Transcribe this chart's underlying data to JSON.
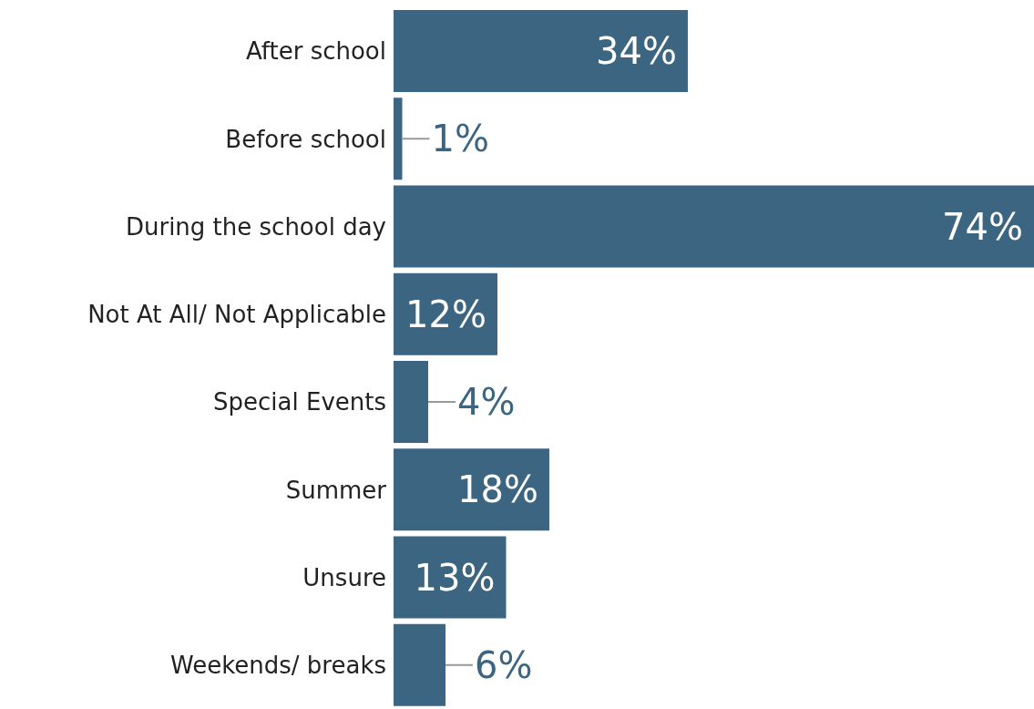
{
  "chart_data": {
    "type": "bar",
    "orientation": "horizontal",
    "categories": [
      "After school",
      "Before school",
      "During the school day",
      "Not At All/ Not Applicable",
      "Special Events",
      "Summer",
      "Unsure",
      "Weekends/ breaks"
    ],
    "values": [
      34,
      1,
      74,
      12,
      4,
      18,
      13,
      6
    ],
    "value_labels": [
      "34%",
      "1%",
      "74%",
      "12%",
      "4%",
      "18%",
      "13%",
      "6%"
    ],
    "color": "#3b6580",
    "grid": false,
    "legend": false
  }
}
